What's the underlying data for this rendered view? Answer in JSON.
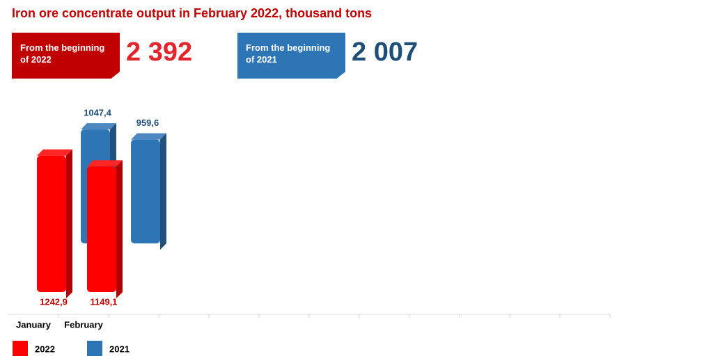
{
  "chart_data": {
    "type": "bar3d",
    "title": "Iron ore concentrate output in February 2022, thousand tons",
    "summary": [
      {
        "label": "From the beginning of 2022",
        "total": {
          "value": 2392,
          "label": "2 392"
        },
        "color": "#c00000",
        "text_color": "#e3242b"
      },
      {
        "label": "From the beginning of 2021",
        "total": {
          "value": 2007,
          "label": "2 007"
        },
        "color": "#2e75b6",
        "text_color": "#1f4e79"
      }
    ],
    "categories": [
      "January",
      "February",
      null,
      null,
      null,
      null,
      null,
      null,
      null,
      null,
      null,
      null
    ],
    "series": [
      {
        "name": "2022",
        "color": "#ff0000",
        "label_color": "#c00000",
        "values": [
          1242.9,
          1149.1,
          null,
          null,
          null,
          null,
          null,
          null,
          null,
          null,
          null,
          null
        ],
        "value_labels": [
          "1242,9",
          "1149,1",
          null,
          null,
          null,
          null,
          null,
          null,
          null,
          null,
          null,
          null
        ]
      },
      {
        "name": "2021",
        "color": "#2e75b6",
        "label_color": "#1f4e79",
        "values": [
          1047.4,
          959.6,
          null,
          null,
          null,
          null,
          null,
          null,
          null,
          null,
          null,
          null
        ],
        "value_labels": [
          "1047,4",
          "959,6",
          null,
          null,
          null,
          null,
          null,
          null,
          null,
          null,
          null,
          null
        ]
      }
    ]
  }
}
